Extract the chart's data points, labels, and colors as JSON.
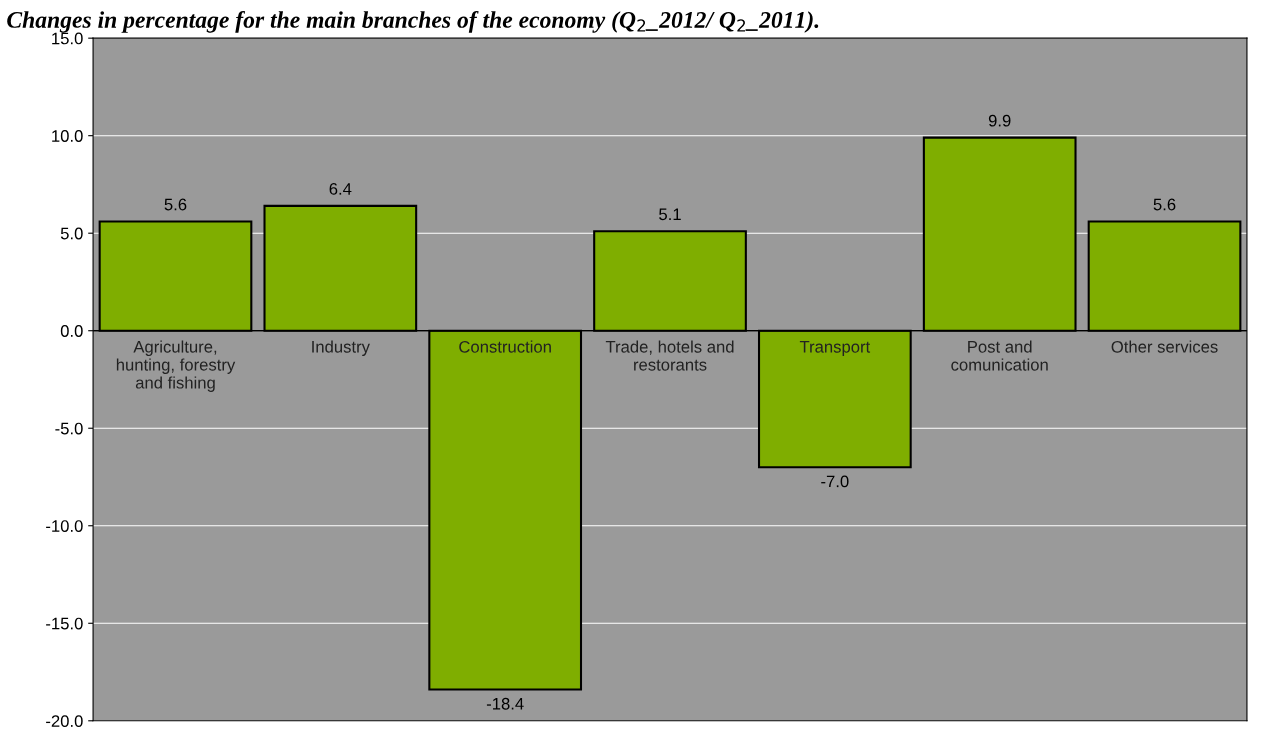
{
  "chart_data": {
    "type": "bar",
    "title": "Changes in percentage for the main branches of the economy (Q$_{2}$_2012/ Q$_{2}$_2011).",
    "categories": [
      "Agriculture,\nhunting, forestry\nand fishing",
      "Industry",
      "Construction",
      "Trade, hotels and\nrestorants",
      "Transport",
      "Post and\ncomunication",
      "Other services"
    ],
    "values": [
      5.6,
      6.4,
      -18.4,
      5.1,
      -7.0,
      9.9,
      5.6
    ],
    "color": "#7fae00",
    "ylim": [
      -20,
      15
    ],
    "yticks": [
      {
        "value": -20,
        "label": "-20.0"
      },
      {
        "value": -15,
        "label": "-15.0"
      },
      {
        "value": -10,
        "label": "-10.0"
      },
      {
        "value": -5,
        "label": "-5.0"
      },
      {
        "value": 0,
        "label": "0.0"
      },
      {
        "value": 5,
        "label": "5.0"
      },
      {
        "value": 10,
        "label": "10.0"
      },
      {
        "value": 15,
        "label": "15.0"
      }
    ],
    "value_labels": [
      "5.6",
      "6.4",
      "-18.4",
      "5.1",
      "-7.0",
      "9.9",
      "5.6"
    ],
    "grid": "y"
  }
}
